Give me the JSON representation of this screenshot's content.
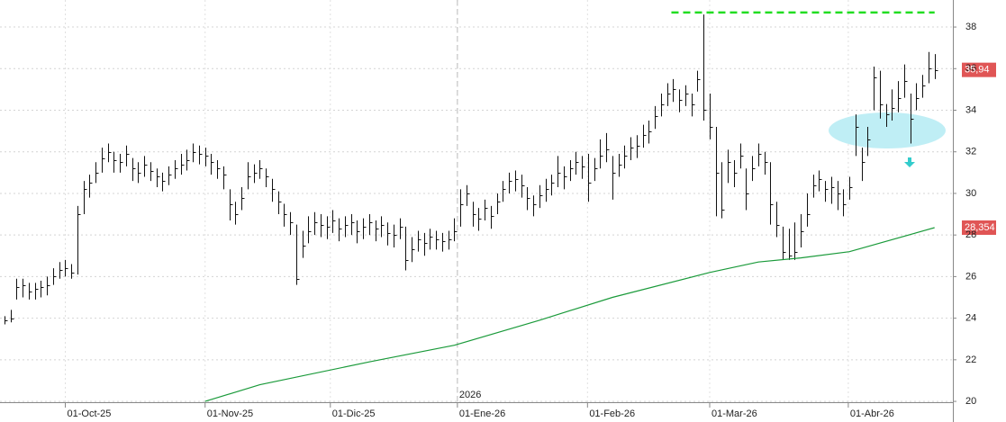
{
  "chart_data": {
    "type": "ohlc",
    "xlim": [
      -0.74,
      156
    ],
    "ylim": [
      19.96,
      39.3
    ],
    "yticks": [
      20,
      22,
      24,
      26,
      28,
      30,
      32,
      34,
      36,
      38
    ],
    "xticks": [
      {
        "value": 10,
        "label": "01-Oct-25"
      },
      {
        "value": 33,
        "label": "01-Nov-25"
      },
      {
        "value": 53.6,
        "label": "01-Dic-25"
      },
      {
        "value": 74.5,
        "label": "01-Ene-26"
      },
      {
        "value": 95.9,
        "label": "01-Feb-26"
      },
      {
        "value": 116,
        "label": "01-Mar-26"
      },
      {
        "value": 138.8,
        "label": "01-Abr-26"
      }
    ],
    "year_marker": {
      "value": 74.5,
      "label": "2026"
    },
    "grid": true,
    "price": {
      "color": "#111111",
      "label_color": "#e05555",
      "last_value_label": "35,94",
      "high": [
        24.1,
        24.4,
        25.9,
        25.9,
        25.7,
        25.7,
        25.8,
        26.0,
        26.4,
        26.7,
        26.8,
        26.6,
        29.4,
        30.6,
        30.9,
        31.5,
        32.2,
        32.4,
        32.0,
        31.9,
        32.3,
        31.7,
        31.5,
        31.8,
        31.5,
        31.2,
        31.0,
        31.3,
        31.6,
        31.9,
        32.1,
        32.4,
        32.3,
        32.2,
        31.9,
        31.6,
        31.3,
        30.2,
        29.6,
        30.3,
        31.5,
        31.4,
        31.6,
        31.2,
        30.7,
        30.1,
        29.5,
        29.1,
        28.5,
        28.2,
        28.9,
        29.1,
        29.0,
        28.9,
        29.2,
        28.8,
        28.9,
        29.0,
        28.7,
        28.8,
        29.0,
        28.7,
        28.9,
        28.6,
        28.5,
        28.8,
        28.4,
        27.9,
        28.2,
        28.1,
        28.3,
        28.2,
        28.1,
        28.2,
        28.8,
        30.2,
        30.4,
        29.6,
        29.3,
        29.7,
        29.4,
        30.0,
        30.6,
        31.0,
        31.1,
        30.9,
        30.3,
        29.9,
        30.4,
        30.7,
        30.9,
        31.8,
        31.3,
        31.6,
        32.0,
        31.8,
        31.9,
        31.7,
        32.6,
        32.9,
        31.8,
        31.9,
        32.3,
        32.7,
        32.8,
        33.3,
        33.5,
        34.2,
        34.8,
        35.3,
        35.5,
        35.0,
        35.2,
        34.8,
        35.9,
        38.6,
        34.8,
        33.2,
        31.5,
        32.1,
        31.6,
        32.4,
        31.2,
        31.8,
        32.4,
        32.0,
        31.5,
        29.6,
        28.4,
        28.3,
        28.6,
        29.0,
        30.0,
        30.9,
        31.1,
        30.6,
        30.8,
        30.6,
        30.2,
        30.8,
        33.8,
        32.2,
        33.2,
        36.1,
        35.9,
        34.3,
        35.0,
        35.4,
        36.2,
        34.8,
        35.3,
        35.7,
        36.8,
        36.7
      ],
      "low": [
        23.7,
        23.8,
        24.9,
        25.0,
        24.9,
        24.9,
        25.0,
        25.1,
        25.6,
        25.9,
        26.0,
        25.9,
        26.1,
        29.0,
        29.8,
        30.5,
        31.0,
        31.5,
        31.0,
        31.0,
        31.3,
        30.6,
        30.5,
        30.8,
        30.6,
        30.3,
        30.1,
        30.4,
        30.7,
        30.9,
        31.1,
        31.5,
        31.4,
        31.3,
        30.9,
        30.7,
        30.2,
        28.7,
        28.5,
        29.2,
        30.2,
        30.5,
        30.7,
        30.3,
        29.6,
        29.0,
        28.4,
        28.0,
        25.6,
        26.9,
        27.6,
        28.0,
        27.9,
        27.8,
        28.1,
        27.7,
        27.9,
        28.0,
        27.6,
        27.8,
        28.0,
        27.7,
        27.9,
        27.5,
        27.4,
        27.8,
        26.3,
        26.7,
        27.2,
        27.0,
        27.3,
        27.3,
        27.2,
        27.3,
        27.7,
        28.4,
        29.4,
        28.4,
        28.2,
        28.7,
        28.3,
        29.0,
        29.6,
        30.0,
        30.1,
        29.8,
        29.2,
        28.9,
        29.3,
        29.6,
        29.9,
        30.3,
        30.2,
        30.6,
        30.9,
        30.7,
        29.6,
        30.6,
        31.2,
        31.5,
        29.7,
        30.8,
        31.2,
        31.6,
        31.7,
        32.2,
        32.4,
        33.1,
        33.7,
        34.2,
        34.4,
        33.9,
        34.2,
        33.7,
        34.9,
        33.5,
        32.6,
        28.9,
        28.8,
        30.5,
        30.3,
        31.2,
        29.2,
        30.6,
        31.3,
        30.9,
        28.5,
        27.9,
        26.8,
        26.8,
        26.8,
        27.4,
        28.4,
        29.8,
        30.1,
        29.6,
        29.5,
        29.2,
        28.9,
        29.7,
        31.8,
        30.6,
        31.8,
        34.0,
        33.6,
        33.2,
        33.5,
        33.9,
        34.6,
        32.4,
        34.0,
        34.6,
        35.3,
        35.5
      ],
      "close": [
        23.9,
        24.0,
        25.5,
        25.6,
        25.3,
        25.4,
        25.5,
        25.6,
        26.0,
        26.3,
        26.4,
        26.2,
        29.0,
        30.2,
        30.5,
        31.0,
        31.7,
        32.0,
        31.6,
        31.5,
        31.9,
        31.2,
        31.0,
        31.4,
        31.1,
        30.8,
        30.6,
        30.9,
        31.2,
        31.4,
        31.6,
        32.0,
        31.9,
        31.8,
        31.5,
        31.2,
        30.9,
        29.5,
        29.0,
        29.8,
        30.8,
        31.0,
        31.2,
        30.8,
        30.2,
        29.6,
        29.0,
        28.6,
        25.9,
        27.5,
        28.2,
        28.6,
        28.5,
        28.4,
        28.7,
        28.3,
        28.5,
        28.6,
        28.2,
        28.4,
        28.6,
        28.3,
        28.5,
        28.1,
        28.0,
        28.4,
        26.8,
        27.3,
        27.8,
        27.6,
        27.9,
        27.8,
        27.7,
        27.8,
        28.2,
        29.5,
        30.0,
        29.0,
        28.8,
        29.3,
        28.9,
        29.6,
        30.2,
        30.6,
        30.7,
        30.4,
        29.8,
        29.5,
        29.9,
        30.2,
        30.5,
        31.0,
        30.8,
        31.2,
        31.5,
        31.3,
        30.5,
        31.2,
        31.8,
        32.1,
        31.0,
        31.4,
        31.8,
        32.2,
        32.3,
        32.8,
        33.0,
        33.7,
        34.3,
        34.8,
        35.0,
        34.5,
        34.8,
        34.3,
        35.5,
        34.0,
        33.2,
        31.0,
        29.2,
        31.5,
        31.0,
        31.8,
        30.0,
        31.2,
        31.9,
        31.5,
        29.5,
        28.5,
        27.2,
        27.0,
        27.2,
        28.2,
        29.0,
        30.4,
        30.7,
        30.2,
        30.3,
        30.0,
        29.5,
        30.3,
        33.2,
        31.5,
        32.6,
        35.6,
        34.3,
        33.8,
        34.1,
        34.6,
        35.4,
        33.6,
        34.6,
        35.2,
        36.0,
        35.94
      ]
    },
    "moving_average": {
      "color": "#1a9a3a",
      "label_color": "#e05555",
      "last_value_label": "28,354",
      "x": [
        33,
        42,
        60,
        74,
        88,
        100,
        116,
        124,
        131,
        139,
        153
      ],
      "values": [
        20.0,
        20.8,
        21.9,
        22.7,
        23.9,
        25.0,
        26.2,
        26.7,
        26.9,
        27.2,
        28.354
      ]
    },
    "resistance": {
      "value": 38.7,
      "x": [
        109.7,
        153
      ],
      "color": "#22dd22"
    }
  }
}
